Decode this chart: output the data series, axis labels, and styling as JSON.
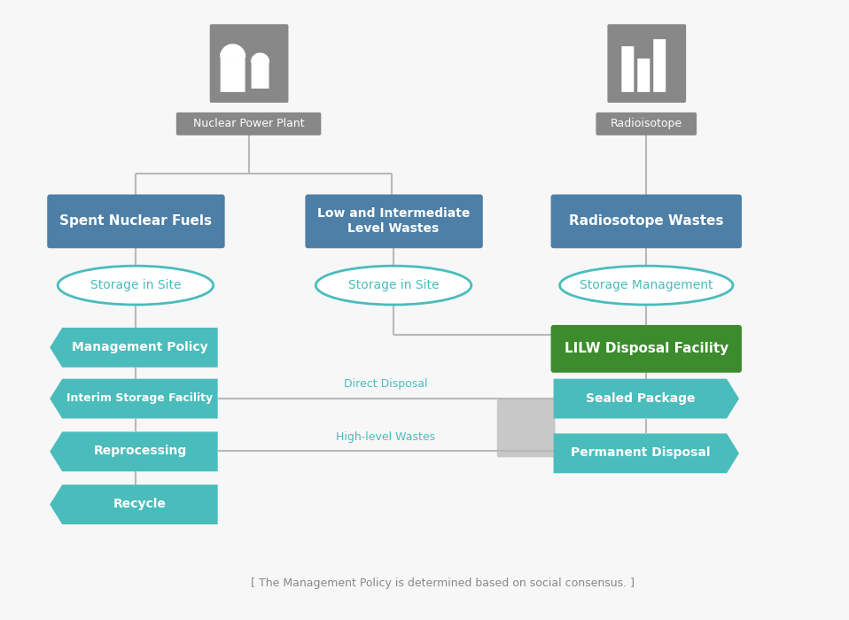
{
  "bg_color": "#f7f7f7",
  "line_color": "#b8b8b8",
  "blue_box_color": "#4e7fa6",
  "teal_box_color": "#4abcbc",
  "green_box_color": "#3c8c2e",
  "oval_border_color": "#4abcbc",
  "oval_fill_color": "#ffffff",
  "text_white": "#ffffff",
  "text_teal": "#4abcbc",
  "text_gray": "#888888",
  "icon_color": "#888888",
  "nuclear_label": "Nuclear Power Plant",
  "isotope_label": "Radioisotope",
  "snf_label": "Spent Nuclear Fuels",
  "lilw_label": "Low and Intermediate\nLevel Wastes",
  "rw_label": "Radiosotope Wastes",
  "sis1_label": "Storage in Site",
  "sis2_label": "Storage in Site",
  "sm_label": "Storage Management",
  "mp_label": "Management Policy",
  "isf_label": "Interim Storage Facility",
  "rp_label": "Reprocessing",
  "rec_label": "Recycle",
  "lilw_disp_label": "LILW Disposal Facility",
  "sp_label": "Sealed Package",
  "pd_label": "Permanent Disposal",
  "direct_label": "Direct Disposal",
  "hw_label": "High-level Wastes",
  "footnote": "[ The Management Policy is determined based on social consensus. ]",
  "fig_width": 9.58,
  "fig_height": 7.0,
  "dpi": 100
}
